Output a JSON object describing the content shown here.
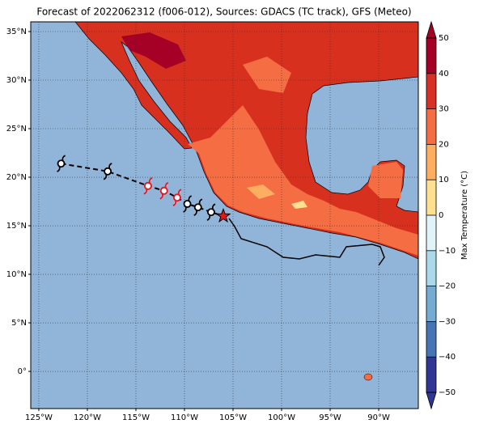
{
  "title": "Forecast of 2022062312 (f006-012), Sources: GDACS (TC track), GFS (Meteo)",
  "map": {
    "lonlim": [
      -125.83,
      -85.92
    ],
    "latlim": [
      -3.83,
      36
    ],
    "lonticks": [
      {
        "value": -125,
        "label": "125°W"
      },
      {
        "value": -120,
        "label": "120°W"
      },
      {
        "value": -115,
        "label": "115°W"
      },
      {
        "value": -110,
        "label": "110°W"
      },
      {
        "value": -105,
        "label": "105°W"
      },
      {
        "value": -100,
        "label": "100°W"
      },
      {
        "value": -95,
        "label": "95°W"
      },
      {
        "value": -90,
        "label": "90°W"
      }
    ],
    "latticks": [
      {
        "value": 35,
        "label": "35°N"
      },
      {
        "value": 30,
        "label": "30°N"
      },
      {
        "value": 25,
        "label": "25°N"
      },
      {
        "value": 20,
        "label": "20°N"
      },
      {
        "value": 15,
        "label": "15°N"
      },
      {
        "value": 10,
        "label": "10°N"
      },
      {
        "value": 5,
        "label": "5°N"
      },
      {
        "value": 0,
        "label": "0°"
      }
    ],
    "track": [
      {
        "lon": -122.7,
        "lat": 21.4,
        "color": "#000000"
      },
      {
        "lon": -117.9,
        "lat": 20.6,
        "color": "#000000"
      },
      {
        "lon": -113.75,
        "lat": 19.1,
        "color": "#e8141c"
      },
      {
        "lon": -112.1,
        "lat": 18.6,
        "color": "#e8141c"
      },
      {
        "lon": -110.75,
        "lat": 17.9,
        "color": "#e8141c"
      },
      {
        "lon": -109.7,
        "lat": 17.25,
        "color": "#000000"
      },
      {
        "lon": -108.6,
        "lat": 16.9,
        "color": "#000000"
      },
      {
        "lon": -107.25,
        "lat": 16.4,
        "color": "#000000"
      }
    ],
    "current": {
      "lon": -106,
      "lat": 16,
      "color": "#e8141c"
    }
  },
  "colorbar": {
    "label": "Max Temperature (°C)",
    "levels": [
      {
        "value": -50,
        "label": "−50"
      },
      {
        "value": -40,
        "label": "−40"
      },
      {
        "value": -30,
        "label": "−30"
      },
      {
        "value": -20,
        "label": "−20"
      },
      {
        "value": -10,
        "label": "−10"
      },
      0,
      10,
      20,
      30,
      40,
      50
    ],
    "colors": [
      "#313695",
      "#4575b4",
      "#74add1",
      "#abd9e9",
      "#e0f3f8",
      "#fee090",
      "#fdae61",
      "#f46d43",
      "#d73027",
      "#a50026"
    ]
  }
}
